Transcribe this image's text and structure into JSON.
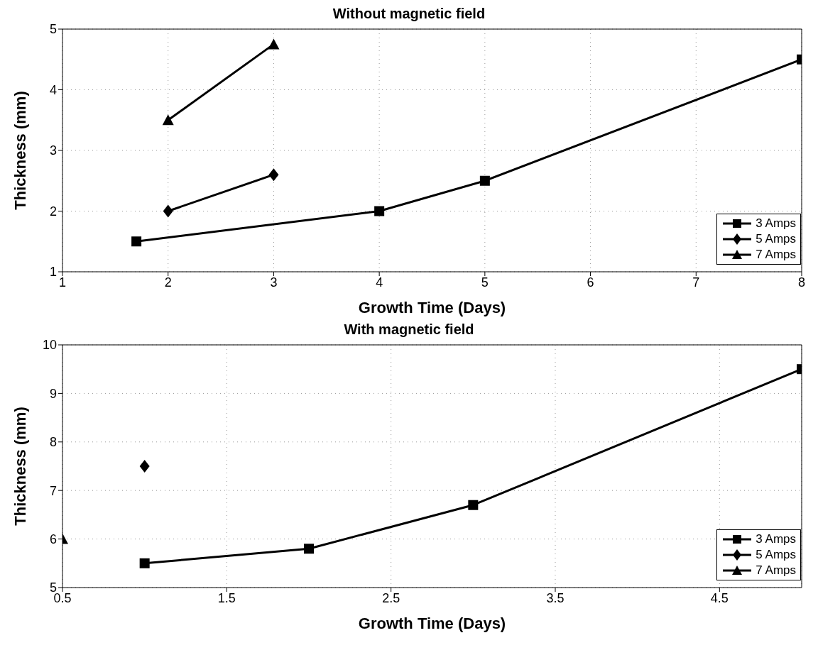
{
  "chart_data": [
    {
      "type": "line",
      "title": "Without magnetic field",
      "xlabel": "Growth Time (Days)",
      "ylabel": "Thickness (mm)",
      "xlim": [
        1,
        8
      ],
      "xticks": [
        1,
        2,
        3,
        4,
        5,
        6,
        7,
        8
      ],
      "ylim": [
        1,
        5
      ],
      "yticks": [
        1,
        2,
        3,
        4,
        5
      ],
      "grid": true,
      "legend": "bottom right",
      "line_style": "solid",
      "series": [
        {
          "name": "3 Amps",
          "color": "#000000",
          "marker": "square",
          "x": [
            1.7,
            4,
            5,
            8
          ],
          "values": [
            1.5,
            2,
            2.5,
            4.5
          ]
        },
        {
          "name": "5 Amps",
          "color": "#000000",
          "marker": "diamond",
          "x": [
            2,
            3
          ],
          "values": [
            2,
            2.6
          ]
        },
        {
          "name": "7 Amps",
          "color": "#000000",
          "marker": "triangle",
          "x": [
            2,
            3
          ],
          "values": [
            3.5,
            4.75
          ]
        }
      ]
    },
    {
      "type": "line",
      "title": "With magnetic field",
      "xlabel": "Growth Time (Days)",
      "ylabel": "Thickness (mm)",
      "xlim": [
        0.5,
        5
      ],
      "xticks": [
        0.5,
        1.5,
        2.5,
        3.5,
        4.5
      ],
      "ylim": [
        5,
        10
      ],
      "yticks": [
        5,
        6,
        7,
        8,
        9,
        10
      ],
      "grid": true,
      "legend": "bottom right",
      "line_style": "solid",
      "series": [
        {
          "name": "3 Amps",
          "color": "#000000",
          "marker": "square",
          "x": [
            1,
            2,
            3,
            5
          ],
          "values": [
            5.5,
            5.8,
            6.7,
            9.5
          ]
        },
        {
          "name": "5 Amps",
          "color": "#000000",
          "marker": "diamond",
          "x": [
            1
          ],
          "values": [
            7.5
          ]
        },
        {
          "name": "7 Amps",
          "color": "#000000",
          "marker": "triangle",
          "x": [
            0.5
          ],
          "values": [
            6.0
          ]
        }
      ]
    }
  ]
}
